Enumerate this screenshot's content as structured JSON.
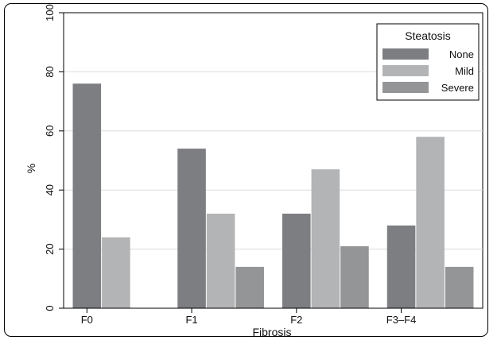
{
  "chart_data": {
    "type": "bar",
    "title": "",
    "xlabel": "Fibrosis",
    "ylabel": "%",
    "categories": [
      "F0",
      "F1",
      "F2",
      "F3–F4"
    ],
    "series": [
      {
        "name": "None",
        "values": [
          76,
          54,
          32,
          28
        ],
        "color": "#7d7e81"
      },
      {
        "name": "Mild",
        "values": [
          24,
          32,
          47,
          58
        ],
        "color": "#b3b4b6"
      },
      {
        "name": "Severe",
        "values": [
          null,
          14,
          21,
          14
        ],
        "color": "#949597"
      }
    ],
    "ylim": [
      0,
      100
    ],
    "yticks": [
      "0",
      "20",
      "40",
      "60",
      "80",
      "100"
    ],
    "grid": true,
    "legend": {
      "title": "Steatosis",
      "placement": "top-right"
    }
  }
}
